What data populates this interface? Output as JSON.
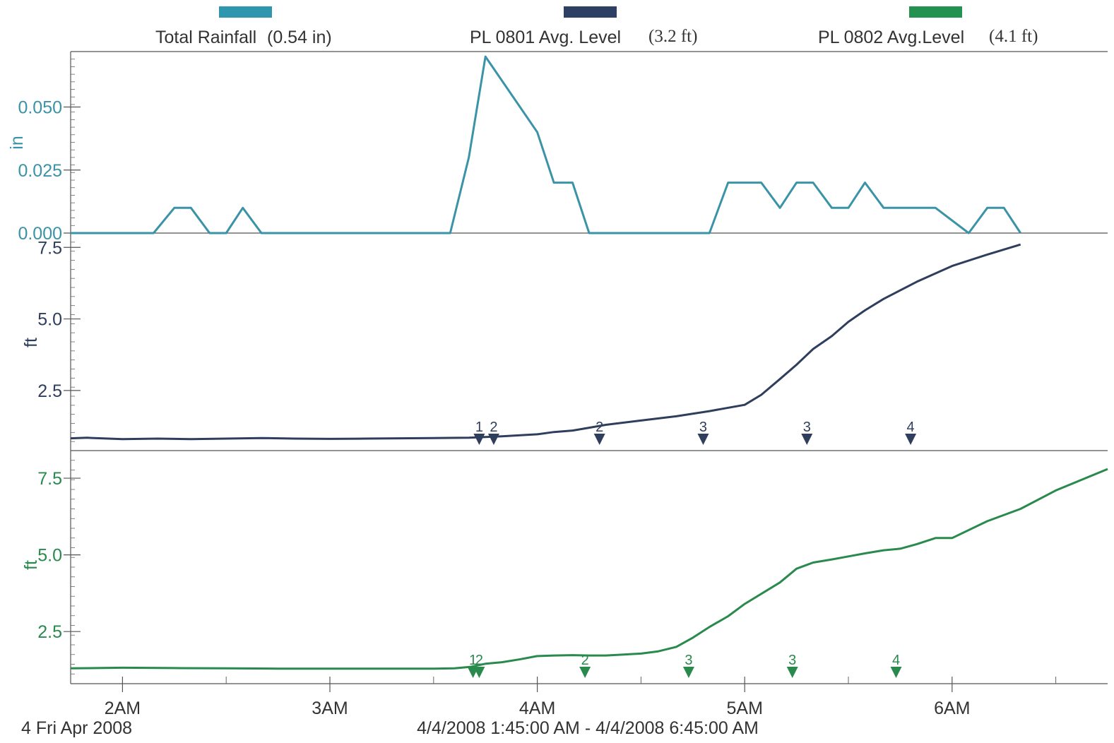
{
  "chart_data": [
    {
      "type": "line",
      "panel": "rainfall",
      "legend_label": "Total Rainfall",
      "legend_value": "(0.54 in)",
      "ylabel": "in",
      "yticks": [
        "0.000",
        "0.025",
        "0.050"
      ],
      "ylim": [
        0,
        0.072
      ],
      "color": "#3a93a6",
      "swatch_color": "#2f97ad",
      "x": [
        1.75,
        2.15,
        2.25,
        2.33,
        2.42,
        2.5,
        2.58,
        2.67,
        3.58,
        3.67,
        3.75,
        4.0,
        4.08,
        4.17,
        4.25,
        4.83,
        4.92,
        5.08,
        5.17,
        5.25,
        5.33,
        5.42,
        5.5,
        5.58,
        5.67,
        5.92,
        6.08,
        6.17,
        6.25,
        6.33
      ],
      "values": [
        0,
        0,
        0.01,
        0.01,
        0,
        0,
        0.01,
        0,
        0,
        0.03,
        0.07,
        0.04,
        0.02,
        0.02,
        0,
        0,
        0.02,
        0.02,
        0.01,
        0.02,
        0.02,
        0.01,
        0.01,
        0.02,
        0.01,
        0.01,
        0,
        0.01,
        0.01,
        0
      ]
    },
    {
      "type": "line",
      "panel": "pl0801",
      "legend_label": "PL 0801 Avg. Level",
      "legend_value": "(3.2 ft)",
      "ylabel": "ft",
      "yticks": [
        "2.5",
        "5.0",
        "7.5"
      ],
      "ylim": [
        0.4,
        8.0
      ],
      "color": "#2e3e5c",
      "swatch_color": "#2d3f63",
      "x": [
        1.75,
        1.83,
        2.0,
        2.17,
        2.33,
        2.5,
        2.67,
        2.83,
        3.0,
        3.17,
        3.33,
        3.5,
        3.67,
        3.83,
        4.0,
        4.08,
        4.17,
        4.25,
        4.33,
        4.5,
        4.67,
        4.83,
        5.0,
        5.08,
        5.17,
        5.25,
        5.33,
        5.42,
        5.5,
        5.58,
        5.67,
        5.83,
        6.0,
        6.17,
        6.33
      ],
      "values": [
        0.83,
        0.85,
        0.8,
        0.82,
        0.8,
        0.82,
        0.84,
        0.82,
        0.81,
        0.82,
        0.83,
        0.84,
        0.85,
        0.9,
        0.97,
        1.05,
        1.1,
        1.2,
        1.3,
        1.45,
        1.6,
        1.78,
        2.0,
        2.35,
        2.9,
        3.4,
        3.95,
        4.4,
        4.9,
        5.3,
        5.7,
        6.3,
        6.85,
        7.25,
        7.6
      ],
      "markers": [
        {
          "label": "1",
          "x": 3.72
        },
        {
          "label": "2",
          "x": 3.79
        },
        {
          "label": "2",
          "x": 4.3
        },
        {
          "label": "3",
          "x": 4.8
        },
        {
          "label": "3",
          "x": 5.3
        },
        {
          "label": "4",
          "x": 5.8
        }
      ]
    },
    {
      "type": "line",
      "panel": "pl0802",
      "legend_label": "PL 0802 Avg.Level",
      "legend_value": "(4.1 ft)",
      "ylabel": "ft",
      "yticks": [
        "2.5",
        "5.0",
        "7.5"
      ],
      "ylim": [
        0.8,
        8.4
      ],
      "color": "#2a8a4e",
      "swatch_color": "#23914f",
      "x": [
        1.75,
        2.0,
        2.25,
        2.5,
        2.75,
        3.0,
        3.25,
        3.5,
        3.6,
        3.68,
        3.75,
        3.83,
        3.92,
        4.0,
        4.08,
        4.17,
        4.25,
        4.33,
        4.5,
        4.58,
        4.67,
        4.75,
        4.83,
        4.92,
        5.0,
        5.17,
        5.25,
        5.33,
        5.42,
        5.5,
        5.58,
        5.67,
        5.75,
        5.83,
        5.92,
        6.0,
        6.17,
        6.33,
        6.5,
        6.75
      ],
      "values": [
        1.3,
        1.32,
        1.31,
        1.3,
        1.29,
        1.29,
        1.29,
        1.29,
        1.3,
        1.35,
        1.45,
        1.5,
        1.6,
        1.7,
        1.72,
        1.73,
        1.72,
        1.72,
        1.78,
        1.85,
        2.0,
        2.3,
        2.65,
        3.0,
        3.4,
        4.1,
        4.55,
        4.75,
        4.85,
        4.95,
        5.05,
        5.15,
        5.2,
        5.35,
        5.55,
        5.55,
        6.1,
        6.5,
        7.1,
        7.8
      ],
      "markers": [
        {
          "label": "1",
          "x": 3.69
        },
        {
          "label": "2",
          "x": 3.72
        },
        {
          "label": "2",
          "x": 4.23
        },
        {
          "label": "3",
          "x": 4.73
        },
        {
          "label": "3",
          "x": 5.23
        },
        {
          "label": "4",
          "x": 5.73
        }
      ]
    }
  ],
  "x_axis": {
    "xlim": [
      1.75,
      6.75
    ],
    "ticks": [
      {
        "value": 2,
        "label": "2AM"
      },
      {
        "value": 3,
        "label": "3AM"
      },
      {
        "value": 4,
        "label": "4AM"
      },
      {
        "value": 5,
        "label": "5AM"
      },
      {
        "value": 6,
        "label": "6AM"
      }
    ],
    "minor_ticks": [
      2.5,
      3.5,
      4.5,
      5.5,
      6.5
    ]
  },
  "footer": {
    "date_label": "4 Fri Apr 2008",
    "range_label": "4/4/2008 1:45:00 AM - 4/4/2008 6:45:00 AM"
  }
}
